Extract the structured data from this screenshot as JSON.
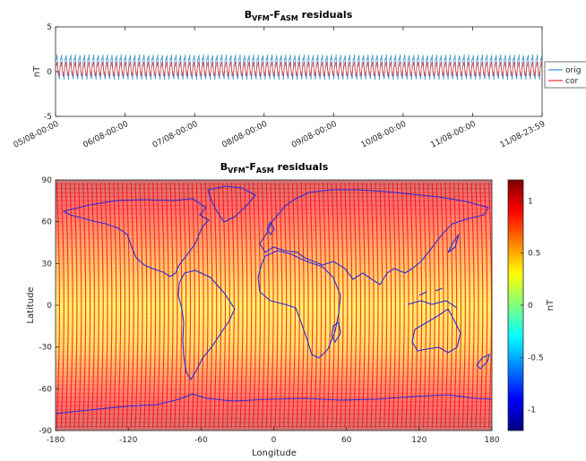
{
  "chart_data": [
    {
      "type": "line",
      "title": {
        "main": "B",
        "sub1": "VFM",
        "mid": "-F",
        "sub2": "ASM",
        "tail": " residuals"
      },
      "xlabel": "",
      "ylabel": "nT",
      "ylim": [
        -5,
        5
      ],
      "yticks": [
        "5",
        "0",
        "-5"
      ],
      "ytick_values": [
        5,
        0,
        -5
      ],
      "xticks": [
        "05/08-00:00",
        "06/08-00:00",
        "07/08-00:00",
        "08/08-00:00",
        "09/08-00:00",
        "10/08-00:00",
        "11/08-00:00",
        "11/08-23:59"
      ],
      "xtick_days": [
        0,
        1,
        2,
        3,
        4,
        5,
        6,
        6.9993
      ],
      "grid": false,
      "legend_placement": "right (clipped)",
      "series": [
        {
          "name": "orig",
          "color": "#3d8fd0",
          "center": 0.5,
          "amplitude": 1.3,
          "cycles_per_day": 15.2
        },
        {
          "name": "cor",
          "color": "#e8352a",
          "center": 0.3,
          "amplitude": 0.65,
          "cycles_per_day": 15.2
        }
      ]
    },
    {
      "type": "heatmap",
      "title": {
        "main": "B",
        "sub1": "VFM",
        "mid": "-F",
        "sub2": "ASM",
        "tail": " residuals"
      },
      "xlabel": "Longitude",
      "ylabel": "Latitude",
      "xlim": [
        -180,
        180
      ],
      "ylim": [
        -90,
        90
      ],
      "xticks": [
        "-180",
        "-120",
        "-60",
        "0",
        "60",
        "120",
        "180"
      ],
      "xtick_values": [
        -180,
        -120,
        -60,
        0,
        60,
        120,
        180
      ],
      "yticks": [
        "90",
        "60",
        "30",
        "0",
        "-30",
        "-60",
        "-90"
      ],
      "ytick_values": [
        90,
        60,
        30,
        0,
        -30,
        -60,
        -90
      ],
      "colorbar": {
        "label": "nT",
        "range": [
          -1.2,
          1.2
        ],
        "ticks": [
          "1",
          "0.5",
          "0",
          "-0.5",
          "-1"
        ],
        "tick_values": [
          1,
          0.5,
          0,
          -0.5,
          -1
        ]
      },
      "value_profile": {
        "lat": [
          90,
          75,
          60,
          30,
          0,
          -30,
          -60,
          -75,
          -90
        ],
        "value": [
          1.1,
          0.95,
          0.8,
          0.55,
          0.35,
          0.45,
          0.8,
          0.95,
          1.1
        ]
      },
      "overlay": {
        "coastline_color": "#2a2ad8"
      }
    }
  ]
}
